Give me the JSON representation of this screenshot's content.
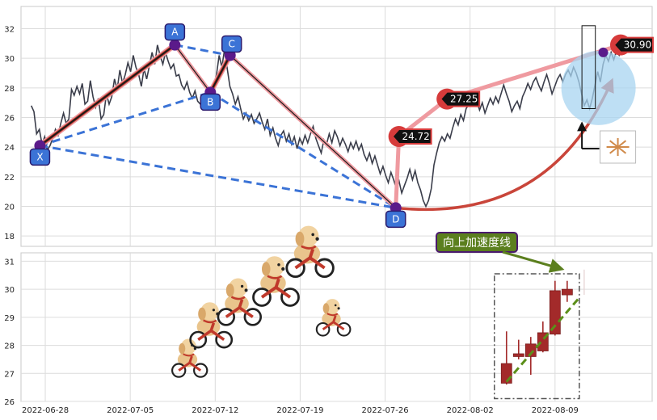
{
  "chart_data": [
    {
      "type": "line",
      "panel": "top",
      "ylim": [
        17.3,
        33.5
      ],
      "yticks": [
        18,
        20,
        22,
        24,
        26,
        28,
        30,
        32
      ],
      "grid": true,
      "series": [
        {
          "values": [
            26.8,
            26.4,
            24.9,
            25.2,
            24.2,
            24.7,
            23.8,
            24.1,
            24.6,
            25.2,
            24.8,
            25.6,
            26.3,
            25.6,
            25.9,
            27.9,
            27.5,
            28.1,
            27.6,
            28.3,
            26.9,
            27.1,
            28.5,
            27.4,
            26.7,
            27.3,
            25.9,
            26.2,
            27.6,
            26.9,
            27.4,
            28.6,
            27.9,
            29.2,
            28.3,
            28.9,
            29.7,
            29.1,
            30.2,
            29.4,
            28.9,
            28.1,
            29.3,
            28.6,
            29.5,
            30.4,
            29.6,
            30.9,
            30.2,
            29.6,
            30.4,
            29.8,
            29.3,
            29.6,
            28.8,
            28.9,
            28.2,
            27.9,
            28.4,
            27.7,
            27.3,
            27.8,
            27.1,
            26.9,
            27.5,
            27.2,
            27.9,
            27.4,
            28.1,
            28.9,
            30.2,
            29.4,
            30.6,
            29.3,
            28.1,
            27.6,
            26.9,
            27.4,
            26.6,
            25.9,
            26.3,
            25.8,
            26.2,
            25.6,
            25.9,
            26.3,
            25.7,
            25.2,
            25.9,
            24.8,
            25.3,
            24.6,
            24.1,
            24.8,
            25.1,
            24.4,
            24.9,
            24.2,
            24.7,
            23.9,
            24.6,
            24.2,
            24.8,
            24.3,
            24.9,
            25.4,
            24.6,
            24.1,
            23.6,
            24.5,
            24.2,
            24.9,
            24.3,
            25.1,
            24.7,
            24.1,
            24.6,
            24.2,
            23.7,
            24.3,
            23.9,
            24.4,
            23.8,
            24.2,
            23.5,
            23.1,
            23.6,
            22.9,
            23.4,
            22.8,
            22.2,
            22.7,
            22.1,
            21.6,
            22.3,
            21.8,
            21.2,
            21.7,
            20.9,
            21.4,
            21.9,
            22.5,
            21.8,
            22.4,
            21.6,
            21.1,
            20.4,
            20.0,
            20.4,
            21.2,
            22.8,
            23.6,
            24.3,
            24.7,
            24.4,
            24.9,
            24.6,
            25.3,
            25.9,
            25.5,
            26.2,
            25.8,
            26.6,
            26.9,
            27.25,
            27.6,
            27.1,
            26.5,
            27.0,
            26.3,
            26.8,
            27.3,
            26.9,
            27.4,
            27.0,
            27.6,
            28.2,
            27.6,
            27.1,
            26.4,
            26.8,
            27.1,
            26.6,
            27.4,
            27.8,
            28.3,
            27.9,
            28.4,
            28.7,
            28.2,
            27.8,
            28.4,
            28.9,
            28.3,
            27.6,
            28.1,
            28.6,
            28.9,
            28.4,
            28.9,
            29.2,
            28.8,
            29.4,
            29.0,
            28.4,
            27.6,
            26.8,
            27.2,
            26.6,
            27.3,
            28.2,
            29.1,
            28.4,
            29.6,
            30.2,
            29.8,
            30.4,
            29.9,
            30.5,
            30.2,
            30.6,
            30.9
          ]
        }
      ],
      "pattern": {
        "points": [
          {
            "label": "X",
            "x": 22.4,
            "y": 24.1
          },
          {
            "label": "A",
            "x": 39.5,
            "y": 30.9
          },
          {
            "label": "B",
            "x": 44.0,
            "y": 27.7
          },
          {
            "label": "C",
            "x": 46.5,
            "y": 30.2
          },
          {
            "label": "D",
            "x": 67.5,
            "y": 19.9
          }
        ],
        "projections": [
          24.72,
          27.25,
          30.9
        ]
      }
    },
    {
      "type": "candlestick",
      "panel": "bottom",
      "ylim": [
        26,
        31.3
      ],
      "yticks": [
        26,
        27,
        28,
        29,
        30,
        31
      ],
      "grid": true,
      "xlim_dates": [
        "2022-06-26",
        "2022-08-17"
      ],
      "xticks": [
        "2022-06-28",
        "2022-07-05",
        "2022-07-12",
        "2022-07-19",
        "2022-07-26",
        "2022-08-02",
        "2022-08-09"
      ],
      "candles": [
        {
          "date": "2022-08-05",
          "open": 26.65,
          "high": 28.5,
          "low": 26.6,
          "close": 27.35
        },
        {
          "date": "2022-08-06",
          "open": 27.6,
          "high": 28.2,
          "low": 27.5,
          "close": 27.7
        },
        {
          "date": "2022-08-07",
          "open": 27.6,
          "high": 28.3,
          "low": 26.95,
          "close": 28.05
        },
        {
          "date": "2022-08-08",
          "open": 27.8,
          "high": 28.85,
          "low": 27.75,
          "close": 28.45
        },
        {
          "date": "2022-08-09",
          "open": 28.4,
          "high": 30.3,
          "low": 28.35,
          "close": 29.95
        },
        {
          "date": "2022-08-10",
          "open": 29.8,
          "high": 30.3,
          "low": 29.55,
          "close": 30.0
        }
      ],
      "trend_line": {
        "from": {
          "date": "2022-08-05",
          "value": 26.7
        },
        "to": {
          "date": "2022-08-11",
          "value": 29.7
        }
      }
    }
  ],
  "annotations": {
    "acceleration_label": "向上加速度线"
  },
  "colors": {
    "price_line": "#3a3d4a",
    "pattern_dashed": "#3b73d6",
    "leg_dark": "#1a1a1a",
    "leg_red": "#c0392b",
    "leg_pink": "#ef9aa0",
    "marker_purple": "#5b1a8a",
    "label_blue": "#3b73d6",
    "price_tag": "#d63b3b",
    "candle": "#a32a2a",
    "trend_dashed": "#5b8f1a",
    "label_bg": "#5b7f1e",
    "circle_fill": "#a8d4f0"
  },
  "icons": [
    "puppy-bicycle-icon",
    "fireworks-icon"
  ]
}
